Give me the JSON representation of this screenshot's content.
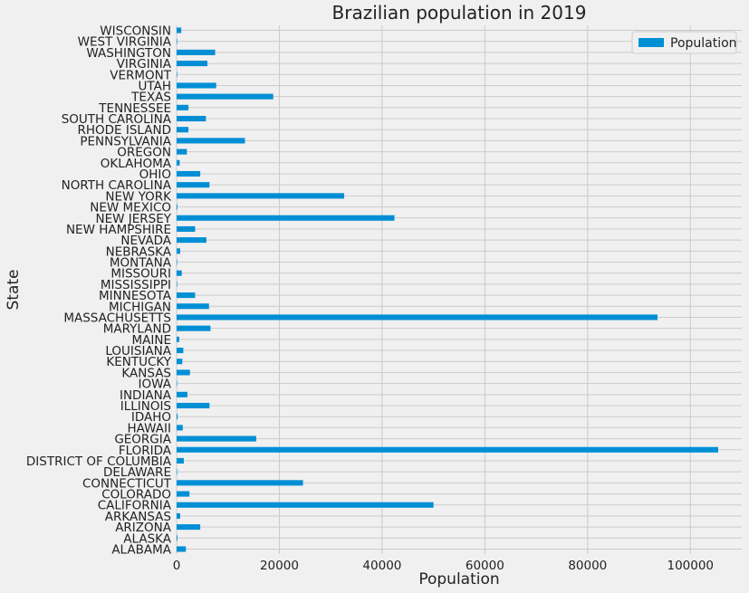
{
  "chart_data": {
    "type": "bar",
    "orientation": "horizontal",
    "title": "Brazilian population in 2019",
    "xlabel": "Population",
    "ylabel": "State",
    "xlim": [
      0,
      110000
    ],
    "x_ticks": [
      0,
      20000,
      40000,
      60000,
      80000,
      100000
    ],
    "grid": true,
    "legend_position": "top-right",
    "bar_color": "#008fd5",
    "categories": [
      "ALABAMA",
      "ALASKA",
      "ARIZONA",
      "ARKANSAS",
      "CALIFORNIA",
      "COLORADO",
      "CONNECTICUT",
      "DELAWARE",
      "DISTRICT OF COLUMBIA",
      "FLORIDA",
      "GEORGIA",
      "HAWAII",
      "IDAHO",
      "ILLINOIS",
      "INDIANA",
      "IOWA",
      "KANSAS",
      "KENTUCKY",
      "LOUISIANA",
      "MAINE",
      "MARYLAND",
      "MASSACHUSETTS",
      "MICHIGAN",
      "MINNESOTA",
      "MISSISSIPPI",
      "MISSOURI",
      "MONTANA",
      "NEBRASKA",
      "NEVADA",
      "NEW HAMPSHIRE",
      "NEW JERSEY",
      "NEW MEXICO",
      "NEW YORK",
      "NORTH CAROLINA",
      "OHIO",
      "OKLAHOMA",
      "OREGON",
      "PENNSYLVANIA",
      "RHODE ISLAND",
      "SOUTH CAROLINA",
      "TENNESSEE",
      "TEXAS",
      "UTAH",
      "VERMONT",
      "VIRGINIA",
      "WASHINGTON",
      "WEST VIRGINIA",
      "WISCONSIN"
    ],
    "series": [
      {
        "name": "Population",
        "values": [
          1800,
          150,
          4600,
          700,
          50000,
          2500,
          24600,
          100,
          1400,
          105400,
          15500,
          1200,
          200,
          6400,
          2100,
          100,
          2600,
          1100,
          1300,
          500,
          6600,
          93600,
          6300,
          3600,
          100,
          1000,
          100,
          700,
          5800,
          3600,
          42400,
          150,
          32600,
          6400,
          4600,
          600,
          2000,
          13300,
          2300,
          5700,
          2300,
          18800,
          7700,
          100,
          6000,
          7500,
          100,
          900
        ]
      }
    ]
  }
}
